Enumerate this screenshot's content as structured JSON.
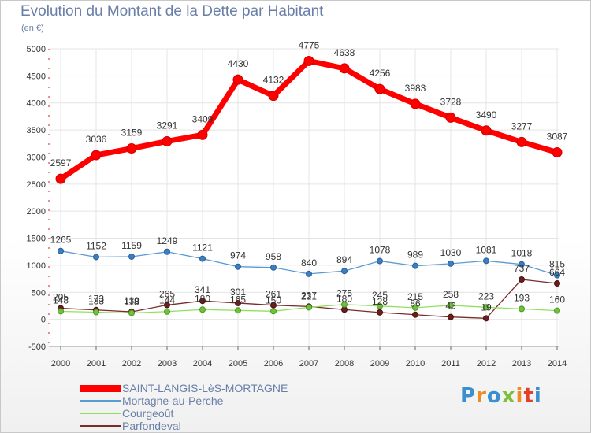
{
  "title": "Evolution du Montant de la Dette par Habitant",
  "subtitle": "(en €)",
  "logo": {
    "text": "Proxiti",
    "colors": [
      "#3a8fd0",
      "#f08a24",
      "#3a8fd0",
      "#7cbf3a",
      "#f08a24",
      "#e0402a",
      "#3a8fd0"
    ]
  },
  "chart_data": {
    "type": "line",
    "xlabel": "",
    "ylabel": "",
    "x": [
      "2000",
      "2001",
      "2002",
      "2003",
      "2004",
      "2005",
      "2006",
      "2007",
      "2008",
      "2009",
      "2010",
      "2011",
      "2012",
      "2013",
      "2014"
    ],
    "ylim": [
      -500,
      5000
    ],
    "yticks": [
      "5000",
      "4500",
      "4000",
      "3500",
      "3000",
      "2500",
      "2000",
      "1500",
      "1000",
      "500",
      "0",
      "-500"
    ],
    "grid": true,
    "legend_position": "bottom-left",
    "series": [
      {
        "name": "SAINT-LANGIS-LèS-MORTAGNE",
        "color": "#ff0000",
        "values": [
          2597,
          3036,
          3159,
          3291,
          3409,
          4430,
          4132,
          4775,
          4638,
          4256,
          3983,
          3728,
          3490,
          3277,
          3087
        ],
        "labels": [
          "2597",
          "3036",
          "3159",
          "3291",
          "3409",
          "4430",
          "4132",
          "4775",
          "4638",
          "4256",
          "3983",
          "3728",
          "3490",
          "3277",
          "3087"
        ]
      },
      {
        "name": "Mortagne-au-Perche",
        "color": "#5b9bd5",
        "values": [
          1265,
          1152,
          1159,
          1249,
          1121,
          974,
          958,
          840,
          894,
          1078,
          989,
          1030,
          1081,
          1018,
          815
        ],
        "labels": [
          "1265",
          "1152",
          "1159",
          "1249",
          "1121",
          "974",
          "958",
          "840",
          "894",
          "1078",
          "989",
          "1030",
          "1081",
          "1018",
          "815"
        ]
      },
      {
        "name": "Courgeoût",
        "color": "#90e060",
        "values": [
          148,
          133,
          118,
          144,
          180,
          165,
          150,
          221,
          275,
          245,
          215,
          258,
          223,
          193,
          160
        ],
        "labels": [
          "148",
          "133",
          "118",
          "144",
          "180",
          "165",
          "150",
          "221",
          "275",
          "245",
          "215",
          "258",
          "223",
          "193",
          "160"
        ]
      },
      {
        "name": "Parfondeval",
        "color": "#7a2b2b",
        "values": [
          205,
          173,
          139,
          265,
          341,
          301,
          261,
          237,
          180,
          128,
          86,
          43,
          19,
          737,
          664
        ],
        "labels": [
          "205",
          "173",
          "139",
          "265",
          "341",
          "301",
          "261",
          "237",
          "180",
          "128",
          "86",
          "43",
          "19",
          "737",
          "664"
        ]
      }
    ]
  }
}
